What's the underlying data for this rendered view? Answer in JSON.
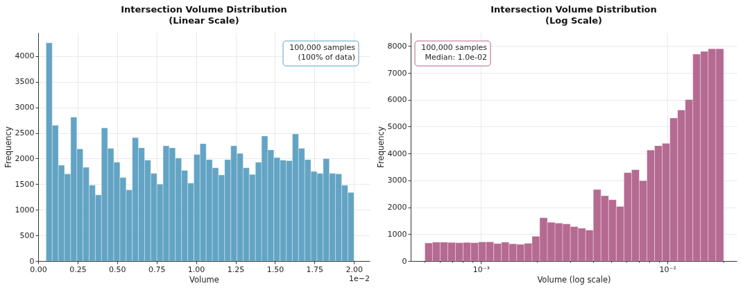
{
  "chart_data": [
    {
      "type": "histogram",
      "title": "Intersection Volume Distribution\n(Linear Scale)",
      "xlabel": "Volume",
      "ylabel": "Frequency",
      "color": "#5ba0c1",
      "bins": [
        0.05,
        0.089,
        0.128,
        0.167,
        0.206,
        0.245,
        0.284,
        0.323,
        0.362,
        0.401,
        0.44,
        0.479,
        0.518,
        0.557,
        0.596,
        0.635,
        0.674,
        0.713,
        0.752,
        0.791,
        0.83,
        0.869,
        0.908,
        0.947,
        0.986,
        1.025,
        1.064,
        1.103,
        1.142,
        1.181,
        1.22,
        1.259,
        1.298,
        1.337,
        1.376,
        1.415,
        1.454,
        1.493,
        1.532,
        1.571,
        1.61,
        1.649,
        1.688,
        1.727,
        1.766,
        1.805,
        1.844,
        1.883,
        1.922,
        1.961,
        2.0
      ],
      "values": [
        4260,
        2650,
        1870,
        1700,
        2810,
        2190,
        1830,
        1480,
        1290,
        2600,
        2200,
        1930,
        1630,
        1390,
        2410,
        2210,
        1970,
        1710,
        1500,
        2250,
        2210,
        2010,
        1770,
        1520,
        2080,
        2290,
        1980,
        1820,
        1680,
        1980,
        2250,
        2100,
        1820,
        1690,
        1930,
        2440,
        2170,
        2020,
        1970,
        1960,
        2480,
        2200,
        1980,
        1750,
        1710,
        2000,
        1710,
        1700,
        1480,
        1340
      ],
      "xlim": [
        0,
        2.1
      ],
      "ylim": [
        0,
        4460
      ],
      "xticks": [
        {
          "value": 0,
          "label": "0.00"
        },
        {
          "value": 0.25,
          "label": "0.25"
        },
        {
          "value": 0.5,
          "label": "0.50"
        },
        {
          "value": 0.75,
          "label": "0.75"
        },
        {
          "value": 1,
          "label": "1.00"
        },
        {
          "value": 1.25,
          "label": "1.25"
        },
        {
          "value": 1.5,
          "label": "1.50"
        },
        {
          "value": 1.75,
          "label": "1.75"
        },
        {
          "value": 2,
          "label": "2.00"
        }
      ],
      "yticks": [
        0,
        500,
        1000,
        1500,
        2000,
        2500,
        3000,
        3500,
        4000
      ],
      "grid": true,
      "annotations": [
        "100,000 samples\n(100% of data)",
        "1e−2"
      ]
    },
    {
      "type": "histogram",
      "title": "Intersection Volume Distribution\n(Log Scale)",
      "xlabel": "Volume (log scale)",
      "ylabel": "Frequency",
      "color": "#b2638c",
      "log": "x",
      "bins": [
        0.0005,
        0.0005496,
        0.000604,
        0.0006639,
        0.0007297,
        0.0008021,
        0.0008816,
        0.000969,
        0.001065,
        0.001171,
        0.001287,
        0.001414,
        0.001555,
        0.001709,
        0.001878,
        0.002064,
        0.002269,
        0.002494,
        0.002741,
        0.003013,
        0.003312,
        0.00364,
        0.004001,
        0.004397,
        0.004833,
        0.005313,
        0.005839,
        0.006418,
        0.007054,
        0.007754,
        0.008523,
        0.009367,
        0.0103,
        0.01132,
        0.01244,
        0.01367,
        0.01503,
        0.01652,
        0.01816,
        0.02
      ],
      "values": [
        670,
        700,
        700,
        690,
        680,
        690,
        680,
        710,
        710,
        650,
        700,
        640,
        620,
        660,
        920,
        1610,
        1440,
        1410,
        1380,
        1280,
        1220,
        1150,
        2660,
        2430,
        2280,
        2030,
        3290,
        3400,
        2990,
        4130,
        4290,
        4380,
        5320,
        5620,
        6010,
        7700,
        7800,
        7900,
        7900
      ],
      "xlim": [
        0.00042,
        0.0235
      ],
      "ylim": [
        0,
        8500
      ],
      "xticks": [
        {
          "value": 0.0005,
          "label": null
        },
        {
          "value": 0.0006,
          "label": null
        },
        {
          "value": 0.0007,
          "label": null
        },
        {
          "value": 0.0008,
          "label": null
        },
        {
          "value": 0.0009,
          "label": null
        },
        {
          "value": 0.001,
          "label": "10⁻³"
        },
        {
          "value": 0.002,
          "label": null
        },
        {
          "value": 0.003,
          "label": null
        },
        {
          "value": 0.004,
          "label": null
        },
        {
          "value": 0.005,
          "label": null
        },
        {
          "value": 0.006,
          "label": null
        },
        {
          "value": 0.007,
          "label": null
        },
        {
          "value": 0.008,
          "label": null
        },
        {
          "value": 0.009,
          "label": null
        },
        {
          "value": 0.01,
          "label": "10⁻²"
        },
        {
          "value": 0.02,
          "label": null
        }
      ],
      "yticks": [
        0,
        1000,
        2000,
        3000,
        4000,
        5000,
        6000,
        7000,
        8000
      ],
      "grid": true,
      "annotations": [
        "100,000 samples\nMedian: 1.0e-02"
      ]
    }
  ]
}
